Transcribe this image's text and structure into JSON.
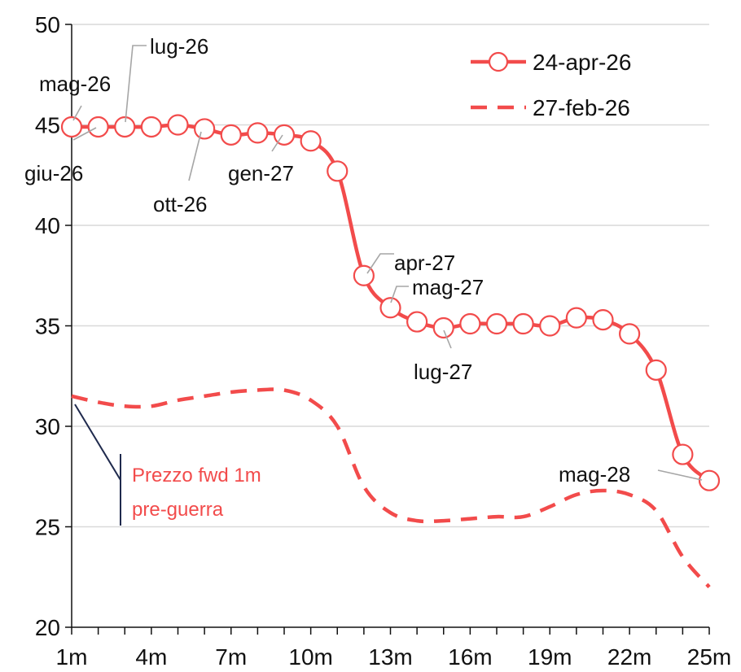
{
  "chart_data": {
    "type": "line",
    "x": [
      1,
      2,
      3,
      4,
      5,
      6,
      7,
      8,
      9,
      10,
      11,
      12,
      13,
      14,
      15,
      16,
      17,
      18,
      19,
      20,
      21,
      22,
      23,
      24,
      25
    ],
    "xticks": [
      {
        "x": 1,
        "label": "1m"
      },
      {
        "x": 4,
        "label": "4m"
      },
      {
        "x": 7,
        "label": "7m"
      },
      {
        "x": 10,
        "label": "10m"
      },
      {
        "x": 13,
        "label": "13m"
      },
      {
        "x": 16,
        "label": "16m"
      },
      {
        "x": 19,
        "label": "19m"
      },
      {
        "x": 22,
        "label": "22m"
      },
      {
        "x": 25,
        "label": "25m"
      }
    ],
    "yticks": [
      20,
      25,
      30,
      35,
      40,
      45,
      50
    ],
    "ylim": [
      20,
      50
    ],
    "xlim": [
      1,
      25
    ],
    "grid": "horizontal",
    "legend_position": "top-right",
    "series": [
      {
        "name": "24-apr-26",
        "style": "solid-markers",
        "color": "#f24b4b",
        "values": [
          44.9,
          44.9,
          44.9,
          44.9,
          45.0,
          44.8,
          44.5,
          44.6,
          44.5,
          44.2,
          42.7,
          37.5,
          35.9,
          35.2,
          34.9,
          35.1,
          35.1,
          35.1,
          35.0,
          35.4,
          35.3,
          34.6,
          32.8,
          28.6,
          27.3
        ]
      },
      {
        "name": "27-feb-26",
        "style": "dashed",
        "color": "#f24b4b",
        "values": [
          31.5,
          31.2,
          31.0,
          31.0,
          31.3,
          31.5,
          31.7,
          31.8,
          31.8,
          31.3,
          30.0,
          27.0,
          25.7,
          25.3,
          25.3,
          25.4,
          25.5,
          25.5,
          26.0,
          26.6,
          26.8,
          26.6,
          25.8,
          23.5,
          22.0
        ]
      }
    ],
    "annotations": [
      {
        "text": "mag-26",
        "x": 1,
        "y": 44.9
      },
      {
        "text": "giu-26",
        "x": 2,
        "y": 44.9
      },
      {
        "text": "lug-26",
        "x": 3,
        "y": 44.9
      },
      {
        "text": "ott-26",
        "x": 6,
        "y": 44.8
      },
      {
        "text": "gen-27",
        "x": 9,
        "y": 44.5
      },
      {
        "text": "apr-27",
        "x": 12,
        "y": 37.5
      },
      {
        "text": "mag-27",
        "x": 13,
        "y": 35.9
      },
      {
        "text": "lug-27",
        "x": 15,
        "y": 34.9
      },
      {
        "text": "mag-28",
        "x": 25,
        "y": 27.3
      }
    ],
    "note": {
      "line1": "Prezzo fwd 1m",
      "line2": "pre-guerra",
      "color": "#f24b4b",
      "bracket_color": "#1f2a4d"
    },
    "label_line_color": "#a6a6a6",
    "grid_color": "#d9d9d9"
  }
}
